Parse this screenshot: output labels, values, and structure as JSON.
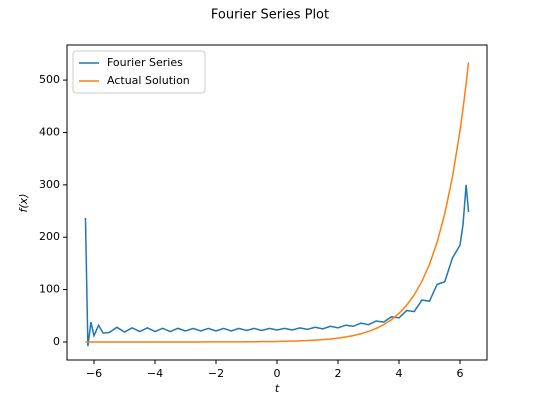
{
  "chart_data": {
    "type": "line",
    "title": "Fourier Series Plot",
    "x_label": "t",
    "y_label": "f(x)",
    "x": [
      -6.28,
      -6.2,
      -6.1,
      -6.0,
      -5.85,
      -5.7,
      -5.5,
      -5.25,
      -5,
      -4.75,
      -4.5,
      -4.25,
      -4,
      -3.75,
      -3.5,
      -3.25,
      -3,
      -2.75,
      -2.5,
      -2.25,
      -2,
      -1.75,
      -1.5,
      -1.25,
      -1,
      -0.75,
      -0.5,
      -0.25,
      0,
      0.25,
      0.5,
      0.75,
      1,
      1.25,
      1.5,
      1.75,
      2,
      2.25,
      2.5,
      2.75,
      3,
      3.25,
      3.5,
      3.75,
      4,
      4.25,
      4.5,
      4.75,
      5,
      5.25,
      5.5,
      5.75,
      6.0,
      6.1,
      6.2,
      6.28
    ],
    "series": [
      {
        "name": "Fourier Series",
        "color": "#1f77b4",
        "values": [
          237,
          -8,
          38,
          12,
          32,
          17,
          18,
          28,
          19,
          27,
          20,
          27,
          20,
          26,
          20,
          26,
          21,
          26,
          21,
          26,
          21,
          26,
          21,
          26,
          22,
          26,
          22,
          26,
          23,
          26,
          23,
          27,
          24,
          28,
          25,
          30,
          27,
          32,
          30,
          36,
          33,
          40,
          38,
          48,
          46,
          60,
          58,
          80,
          78,
          110,
          115,
          160,
          185,
          225,
          300,
          248
        ]
      },
      {
        "name": "Actual Solution",
        "color": "#ff7f0e",
        "values": [
          0.0019,
          0.002,
          0.0022,
          0.0025,
          0.0029,
          0.0033,
          0.0041,
          0.0052,
          0.0067,
          0.0087,
          0.0111,
          0.0143,
          0.0183,
          0.0235,
          0.0302,
          0.0388,
          0.0498,
          0.0639,
          0.0821,
          0.1054,
          0.1353,
          0.1738,
          0.2231,
          0.2865,
          0.3679,
          0.4724,
          0.6065,
          0.7788,
          1,
          1.28,
          1.65,
          2.12,
          2.72,
          3.49,
          4.48,
          5.75,
          7.39,
          9.49,
          12.18,
          15.64,
          20.09,
          25.79,
          33.12,
          42.52,
          54.6,
          70.11,
          90.02,
          115.58,
          148.41,
          190.57,
          244.69,
          314.19,
          403.43,
          445.86,
          492.75,
          533.79
        ]
      }
    ],
    "xlim": [
      -6.885,
      6.885
    ],
    "ylim": [
      -34.4,
      567
    ],
    "xticks": [
      {
        "value": -6,
        "label": "−6"
      },
      {
        "value": -4,
        "label": "−4"
      },
      {
        "value": -2,
        "label": "−2"
      },
      0,
      2,
      4,
      6
    ],
    "yticks": [
      0,
      100,
      200,
      300,
      400,
      500
    ],
    "legend": "upper left"
  }
}
